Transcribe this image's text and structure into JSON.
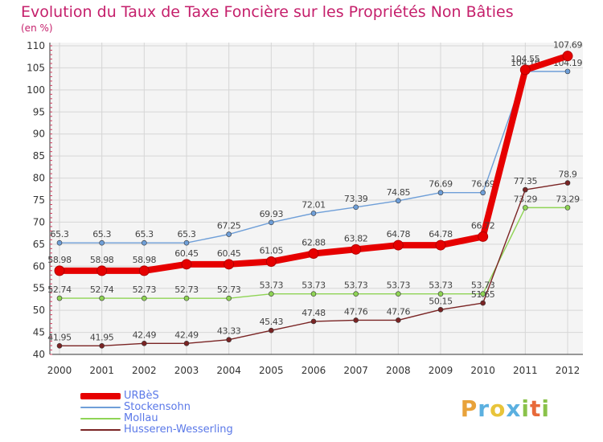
{
  "title": "Evolution du Taux de Taxe Foncière sur les Propriétés Non Bâties",
  "unit_label": "(en %)",
  "watermark": "Proxiti",
  "chart_data": {
    "type": "line",
    "title": "Evolution du Taux de Taxe Foncière sur les Propriétés Non Bâties",
    "ylabel": "(en %)",
    "xlabel": "",
    "ylim": [
      40,
      110
    ],
    "yticks": [
      40,
      45,
      50,
      55,
      60,
      65,
      70,
      75,
      80,
      85,
      90,
      95,
      100,
      105,
      110
    ],
    "categories": [
      "2000",
      "2001",
      "2002",
      "2003",
      "2004",
      "2005",
      "2006",
      "2007",
      "2008",
      "2009",
      "2010",
      "2011",
      "2012"
    ],
    "grid": true,
    "legend_position": "bottom-left",
    "series": [
      {
        "name": "Stockensohn",
        "color": "#6f9fd8",
        "values": [
          65.3,
          65.3,
          65.3,
          65.3,
          67.25,
          69.93,
          72.01,
          73.39,
          74.85,
          76.69,
          76.69,
          104.19,
          104.19
        ],
        "labels": [
          "65.3",
          "65.3",
          "65.3",
          "65.3",
          "67.25",
          "69.93",
          "72.01",
          "73.39",
          "74.85",
          "76.69",
          "76.69",
          "104.19",
          "104.19"
        ]
      },
      {
        "name": "Mollau",
        "color": "#8fd455",
        "values": [
          52.74,
          52.74,
          52.73,
          52.73,
          52.73,
          53.73,
          53.73,
          53.73,
          53.73,
          53.73,
          53.73,
          73.29,
          73.29
        ],
        "labels": [
          "52.74",
          "52.74",
          "52.73",
          "52.73",
          "52.73",
          "53.73",
          "53.73",
          "53.73",
          "53.73",
          "53.73",
          "53.73",
          "73.29",
          "73.29"
        ]
      },
      {
        "name": "Husseren-Wesserling",
        "color": "#7a2424",
        "values": [
          41.95,
          41.95,
          42.49,
          42.49,
          43.33,
          45.43,
          47.48,
          47.76,
          47.76,
          50.15,
          51.65,
          77.35,
          78.9
        ],
        "labels": [
          "41.95",
          "41.95",
          "42.49",
          "42.49",
          "43.33",
          "45.43",
          "47.48",
          "47.76",
          "47.76",
          "50.15",
          "51.65",
          "77.35",
          "78.9"
        ]
      },
      {
        "name": "URBèS",
        "color": "#e60000",
        "values": [
          58.98,
          58.98,
          58.98,
          60.45,
          60.45,
          61.05,
          62.88,
          63.82,
          64.78,
          64.78,
          66.72,
          104.55,
          107.69
        ],
        "labels": [
          "58.98",
          "58.98",
          "58.98",
          "60.45",
          "60.45",
          "61.05",
          "62.88",
          "63.82",
          "64.78",
          "64.78",
          "66.72",
          "104.55",
          "107.69"
        ]
      }
    ],
    "legend_order": [
      "URBèS",
      "Stockensohn",
      "Mollau",
      "Husseren-Wesserling"
    ]
  }
}
